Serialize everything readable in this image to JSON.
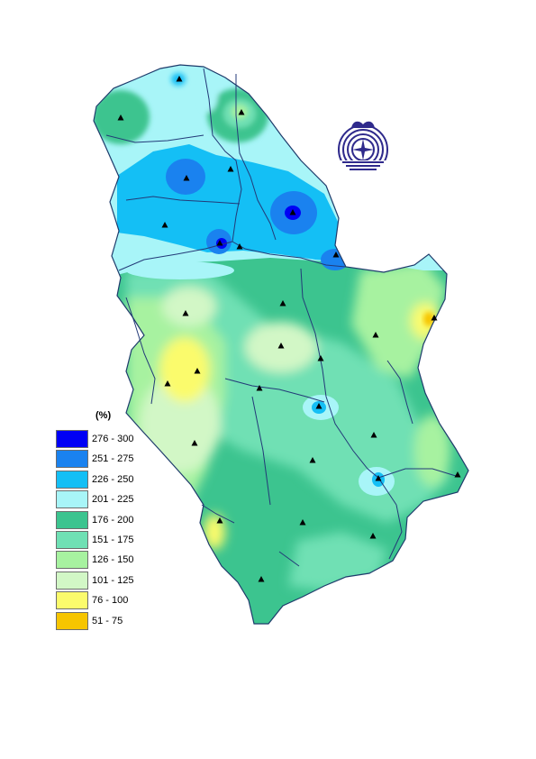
{
  "legend": {
    "unit": "(%)",
    "classes": [
      {
        "label": "276 - 300",
        "color": "#0000f5"
      },
      {
        "label": "251 - 275",
        "color": "#1a82ef"
      },
      {
        "label": "226 - 250",
        "color": "#14bff5"
      },
      {
        "label": "201 - 225",
        "color": "#a8f5f8"
      },
      {
        "label": "176 - 200",
        "color": "#3cc48f"
      },
      {
        "label": "151 - 175",
        "color": "#6fe0b4"
      },
      {
        "label": "126 - 150",
        "color": "#a7f2a0"
      },
      {
        "label": "101 - 125",
        "color": "#d2f7c6"
      },
      {
        "label": "76 - 100",
        "color": "#fbfb6c"
      },
      {
        "label": "51 - 75",
        "color": "#f6c500"
      }
    ]
  },
  "colors": {
    "border": "#1e3b6b",
    "rivers": "#233a78",
    "station": "#000000",
    "logo": "#2f2a8c"
  },
  "icons": {
    "station": "triangle-marker-icon",
    "logo": "institute-logo-icon"
  }
}
